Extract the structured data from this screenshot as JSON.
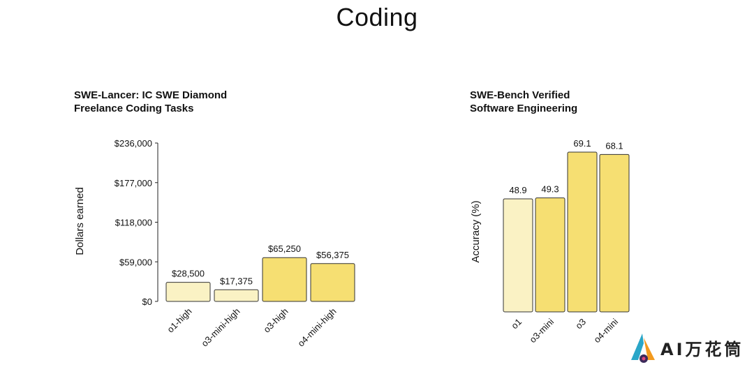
{
  "page": {
    "title": "Coding"
  },
  "colors": {
    "light": "#FAF2C4",
    "dark": "#F6DF72",
    "stroke": "#333333",
    "axis": "#222222"
  },
  "watermark": {
    "text": "AI万花筒"
  },
  "chart_data": [
    {
      "type": "bar",
      "title_lines": [
        "SWE-Lancer: IC SWE Diamond",
        "Freelance Coding Tasks"
      ],
      "xlabel": "",
      "ylabel": "Dollars earned",
      "categories": [
        "o1-high",
        "o3-mini-high",
        "o3-high",
        "o4-mini-high"
      ],
      "values": [
        28500,
        17375,
        65250,
        56375
      ],
      "value_labels": [
        "$28,500",
        "$17,375",
        "$65,250",
        "$56,375"
      ],
      "bar_shades": [
        "light",
        "light",
        "dark",
        "dark"
      ],
      "ylim": [
        0,
        236000
      ],
      "yticks": [
        0,
        59000,
        118000,
        177000,
        236000
      ],
      "ytick_labels": [
        "$0",
        "$59,000",
        "$118,000",
        "$177,000",
        "$236,000"
      ],
      "grid": false
    },
    {
      "type": "bar",
      "title_lines": [
        "SWE-Bench Verified",
        "Software Engineering"
      ],
      "xlabel": "",
      "ylabel": "Accuracy (%)",
      "categories": [
        "o1",
        "o3-mini",
        "o3",
        "o4-mini"
      ],
      "values": [
        48.9,
        49.3,
        69.1,
        68.1
      ],
      "value_labels": [
        "48.9",
        "49.3",
        "69.1",
        "68.1"
      ],
      "bar_shades": [
        "light",
        "dark",
        "dark",
        "dark"
      ],
      "ylim": [
        0,
        75
      ],
      "grid": false
    }
  ]
}
